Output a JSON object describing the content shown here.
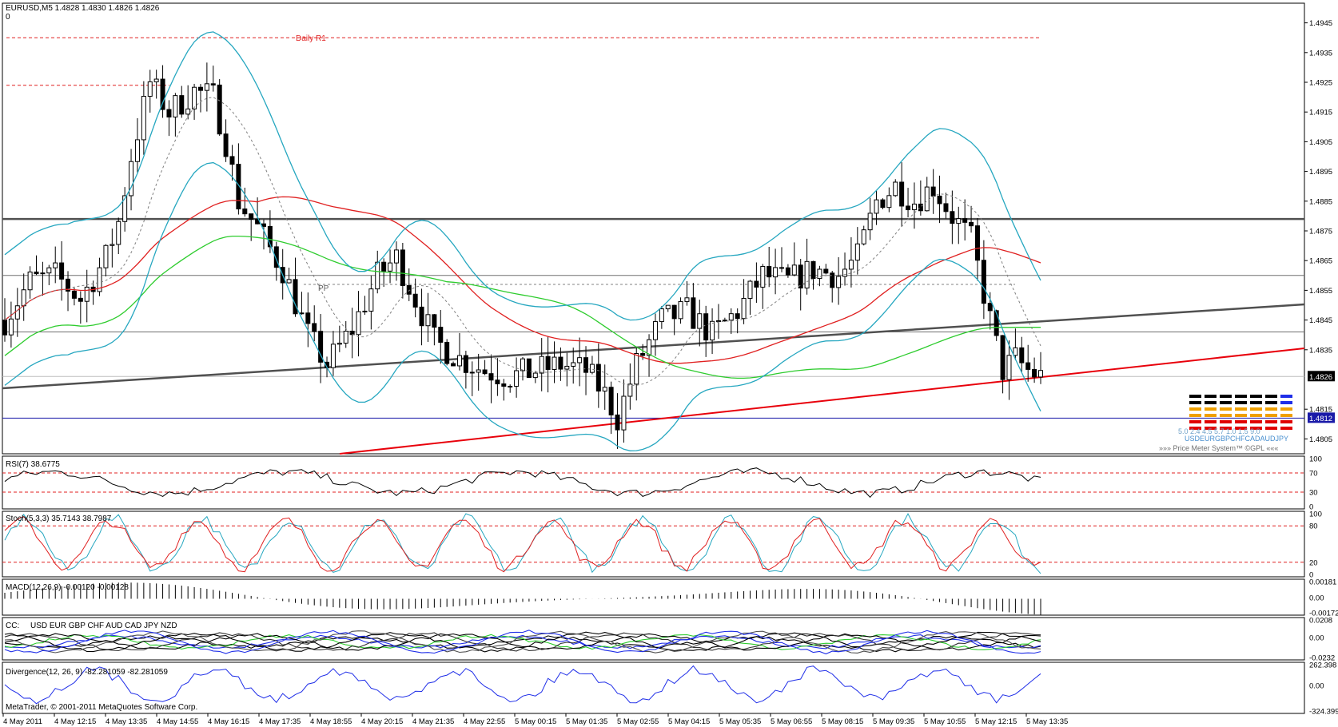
{
  "header": {
    "symbol_line": "EURUSD,M5  1.4828 1.4830 1.4826 1.4826",
    "zero_label": "0"
  },
  "annotations": {
    "daily_r1": "Daily R1",
    "pp": "PP"
  },
  "price_meter": {
    "values": "5.0 2.4 4.5 5.7 1.0 1.5 9.0",
    "currencies": "USDEURGBPCHFCADAUDJPY",
    "caption": "»»» Price Meter System™ ©GPL «««"
  },
  "footer": {
    "copyright": "MetaTrader, © 2001-2011 MetaQuotes Software Corp."
  },
  "colors": {
    "candle": "#000000",
    "bollinger": "#26a7c0",
    "ma_red": "#e02020",
    "ma_green": "#2ecc2e",
    "trend_red": "#e8000b",
    "trend_gray": "#505050",
    "support_blue": "#1a1aa8",
    "rsi": "#000000",
    "stoch_main": "#26a7c0",
    "stoch_signal": "#e02020",
    "macd": "#000000",
    "divergence": "#1f2ee8"
  },
  "chart_data": [
    {
      "id": "main",
      "type": "candlestick",
      "title": "EURUSD,M5",
      "ylim": [
        1.48,
        1.495
      ],
      "y_ticks": [
        "1.4945",
        "1.4935",
        "1.4925",
        "1.4915",
        "1.4905",
        "1.4895",
        "1.4885",
        "1.4875",
        "1.4865",
        "1.4855",
        "1.4845",
        "1.4835",
        "1.4826",
        "1.4815",
        "1.4812",
        "1.4805"
      ],
      "x_ticks": [
        "4 May 2011",
        "4 May 12:15",
        "4 May 13:35",
        "4 May 14:55",
        "4 May 16:15",
        "4 May 17:35",
        "4 May 18:55",
        "4 May 20:15",
        "4 May 21:35",
        "4 May 22:55",
        "5 May 00:15",
        "5 May 01:35",
        "5 May 02:55",
        "5 May 04:15",
        "5 May 05:35",
        "5 May 06:55",
        "5 May 08:15",
        "5 May 09:35",
        "5 May 10:55",
        "5 May 12:15",
        "5 May 13:35"
      ],
      "current_price": "1.4826",
      "support_label": "1.4812",
      "levels": {
        "daily_r1": 1.494,
        "resistance_dashed": 1.4924,
        "black_horizontal": 1.4879,
        "gray_horizontal_1": 1.486,
        "gray_horizontal_2": 1.4841,
        "gray_horizontal_3": 1.4826,
        "blue_support": 1.4812,
        "pp_dashed": 1.4857
      },
      "close_path": [
        [
          0,
          1.4845
        ],
        [
          4,
          1.4858
        ],
        [
          8,
          1.486
        ],
        [
          12,
          1.4852
        ],
        [
          16,
          1.4866
        ],
        [
          18,
          1.4878
        ],
        [
          20,
          1.49
        ],
        [
          23,
          1.4925
        ],
        [
          26,
          1.4915
        ],
        [
          30,
          1.4922
        ],
        [
          33,
          1.492
        ],
        [
          35,
          1.4905
        ],
        [
          37,
          1.4885
        ],
        [
          40,
          1.4876
        ],
        [
          44,
          1.4862
        ],
        [
          48,
          1.484
        ],
        [
          51,
          1.483
        ],
        [
          55,
          1.4842
        ],
        [
          59,
          1.486
        ],
        [
          62,
          1.4866
        ],
        [
          65,
          1.4852
        ],
        [
          68,
          1.4838
        ],
        [
          72,
          1.4832
        ],
        [
          76,
          1.4828
        ],
        [
          80,
          1.4826
        ],
        [
          84,
          1.4828
        ],
        [
          88,
          1.483
        ],
        [
          92,
          1.4828
        ],
        [
          95,
          1.482
        ],
        [
          97,
          1.4812
        ],
        [
          100,
          1.483
        ],
        [
          104,
          1.4845
        ],
        [
          108,
          1.4848
        ],
        [
          112,
          1.484
        ],
        [
          116,
          1.4848
        ],
        [
          120,
          1.486
        ],
        [
          124,
          1.4858
        ],
        [
          128,
          1.4862
        ],
        [
          132,
          1.486
        ],
        [
          135,
          1.4866
        ],
        [
          138,
          1.4885
        ],
        [
          141,
          1.489
        ],
        [
          144,
          1.4885
        ],
        [
          147,
          1.489
        ],
        [
          150,
          1.488
        ],
        [
          153,
          1.4872
        ],
        [
          156,
          1.4845
        ],
        [
          158,
          1.4828
        ],
        [
          160,
          1.4832
        ],
        [
          162,
          1.4828
        ],
        [
          164,
          1.4826
        ]
      ],
      "candle_count": 165
    },
    {
      "id": "rsi",
      "type": "line",
      "title": "RSI(7) 38.6775",
      "ylim": [
        0,
        100
      ],
      "y_ticks": [
        "100",
        "70",
        "30",
        "0"
      ],
      "levels": [
        70,
        30
      ],
      "last_value": 38.6775
    },
    {
      "id": "stoch",
      "type": "line",
      "title": "Stoch(5,3,3) 35.7143 38.7987",
      "ylim": [
        0,
        100
      ],
      "y_ticks": [
        "100",
        "80",
        "20",
        "0"
      ],
      "levels": [
        80,
        20
      ],
      "series": [
        {
          "name": "main",
          "last": 35.7143
        },
        {
          "name": "signal",
          "last": 38.7987
        }
      ]
    },
    {
      "id": "macd",
      "type": "bar",
      "title": "MACD(12,26,9) -0.00120 -0.00128",
      "ylim": [
        -0.00172,
        0.00181
      ],
      "y_ticks": [
        "0.00181",
        "0.00",
        "-0.00172"
      ],
      "series": [
        {
          "name": "macd",
          "last": -0.0012
        },
        {
          "name": "signal",
          "last": -0.00128
        }
      ]
    },
    {
      "id": "cc",
      "type": "line",
      "title": "CC:",
      "legend": [
        "USD",
        "EUR",
        "GBP",
        "CHF",
        "AUD",
        "CAD",
        "JPY",
        "NZD"
      ],
      "ylim": [
        -0.0232,
        0.0208
      ],
      "y_ticks": [
        "0.0208",
        "0.00",
        "-0.0232"
      ]
    },
    {
      "id": "divergence",
      "type": "line",
      "title": "Divergence(12, 26, 9) -82.281059 -82.281059",
      "ylim": [
        -324.399,
        262.398
      ],
      "y_ticks": [
        "262.398",
        "0.00",
        "-324.399"
      ],
      "last_value": -82.281059
    }
  ]
}
